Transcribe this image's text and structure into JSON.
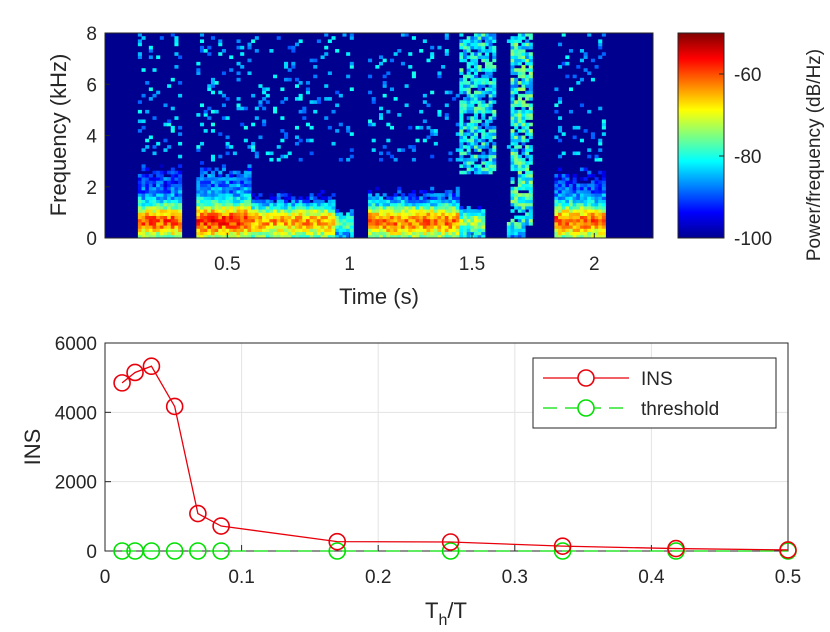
{
  "chart_data": [
    {
      "type": "heatmap",
      "xlabel": "Time (s)",
      "ylabel": "Frequency (kHz)",
      "xlim": [
        0,
        2.24
      ],
      "ylim": [
        0,
        8
      ],
      "xticks": [
        "0.5",
        "1",
        "1.5",
        "2"
      ],
      "xtick_values": [
        0.5,
        1,
        1.5,
        2
      ],
      "yticks": [
        "0",
        "2",
        "4",
        "6",
        "8"
      ],
      "ytick_values": [
        0,
        2,
        4,
        6,
        8
      ],
      "colorbar": {
        "label": "Power/frequency (dB/Hz)",
        "range": [
          -100,
          -50
        ],
        "ticks": [
          "-60",
          "-80",
          "-100"
        ],
        "tick_values": [
          -60,
          -80,
          -100
        ],
        "colormap": "jet"
      },
      "segments": [
        {
          "t0": 0.14,
          "t1": 0.32,
          "f_top": 2.6,
          "peak_db": -54
        },
        {
          "t0": 0.37,
          "t1": 0.6,
          "f_top": 2.6,
          "peak_db": -52
        },
        {
          "t0": 0.6,
          "t1": 0.94,
          "f_top": 1.6,
          "peak_db": -56
        },
        {
          "t0": 0.94,
          "t1": 1.02,
          "f_top": 1.0,
          "peak_db": -66
        },
        {
          "t0": 1.08,
          "t1": 1.45,
          "f_top": 1.8,
          "peak_db": -54
        },
        {
          "t0": 1.45,
          "t1": 1.56,
          "f_top": 1.2,
          "peak_db": -64
        },
        {
          "t0": 1.64,
          "t1": 1.72,
          "f_top": 0.6,
          "peak_db": -66
        },
        {
          "t0": 1.83,
          "t1": 2.05,
          "f_top": 2.4,
          "peak_db": -54
        }
      ],
      "fricatives": [
        {
          "t0": 1.45,
          "t1": 1.6,
          "f_bottom": 2.5,
          "f_top": 8.0,
          "level_db": -82
        },
        {
          "t0": 1.66,
          "t1": 1.74,
          "f_bottom": 0.5,
          "f_top": 8.0,
          "level_db": -80
        }
      ]
    },
    {
      "type": "line",
      "xlabel": "T_h/T",
      "ylabel": "INS",
      "xlim": [
        0,
        0.5
      ],
      "ylim": [
        0,
        6000
      ],
      "xticks": [
        "0",
        "0.1",
        "0.2",
        "0.3",
        "0.4",
        "0.5"
      ],
      "xtick_values": [
        0,
        0.1,
        0.2,
        0.3,
        0.4,
        0.5
      ],
      "yticks": [
        "0",
        "2000",
        "4000",
        "6000"
      ],
      "ytick_values": [
        0,
        2000,
        4000,
        6000
      ],
      "grid": true,
      "legend": "top-right",
      "x": [
        0.0125,
        0.022,
        0.034,
        0.051,
        0.068,
        0.085,
        0.17,
        0.253,
        0.335,
        0.418,
        0.5
      ],
      "series": [
        {
          "name": "INS",
          "color": "#e8000b",
          "style": "solid",
          "marker": "circle",
          "values": [
            4850,
            5150,
            5330,
            4170,
            1080,
            720,
            270,
            260,
            140,
            70,
            30
          ]
        },
        {
          "name": "threshold",
          "color": "#00e000",
          "style": "dashed",
          "marker": "circle",
          "values": [
            0,
            0,
            0,
            0,
            0,
            0,
            0,
            0,
            0,
            0,
            0
          ]
        }
      ]
    }
  ]
}
